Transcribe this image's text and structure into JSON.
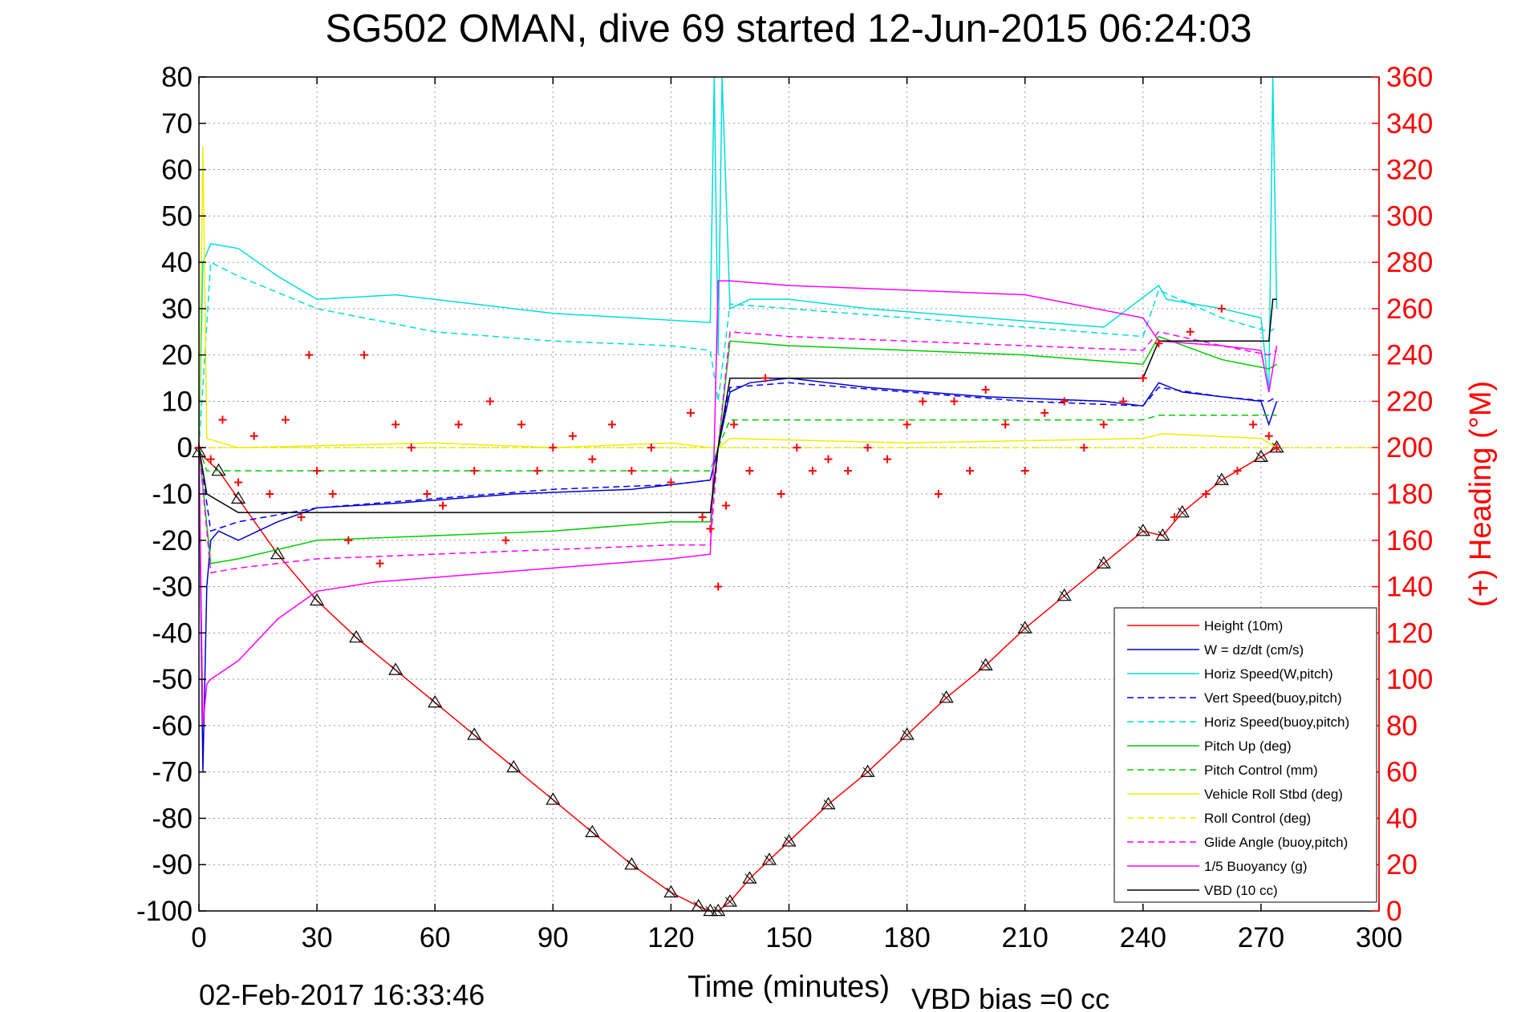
{
  "chart_data": {
    "type": "line",
    "title": "SG502 OMAN, dive 69 started 12-Jun-2015 06:24:03",
    "xlabel": "Time (minutes)",
    "ylabel_right": "(+) Heading (°M)",
    "footer_left": "02-Feb-2017 16:33:46",
    "footer_right": "VBD bias =0 cc",
    "xlim": [
      0,
      300
    ],
    "ylim": [
      -100,
      80
    ],
    "ylim_right": [
      0,
      360
    ],
    "x_ticks": [
      0,
      30,
      60,
      90,
      120,
      150,
      180,
      210,
      240,
      270,
      300
    ],
    "y_ticks": [
      80,
      70,
      60,
      50,
      40,
      30,
      20,
      10,
      0,
      -10,
      -20,
      -30,
      -40,
      -50,
      -60,
      -70,
      -80,
      -90,
      -100
    ],
    "y_right_ticks": [
      360,
      340,
      320,
      300,
      280,
      260,
      240,
      220,
      200,
      180,
      160,
      140,
      120,
      100,
      80,
      60,
      40,
      20,
      0
    ],
    "grid": true,
    "legend_position": "lower-right",
    "colors": {
      "right_axis": "#ff0000",
      "axes": "#000000"
    },
    "series": [
      {
        "name": "Height (10m)",
        "color": "#ff0000",
        "style": "solid",
        "marker": "triangle",
        "x": [
          0,
          5,
          10,
          20,
          30,
          40,
          50,
          60,
          70,
          80,
          90,
          100,
          110,
          120,
          127,
          130,
          132,
          135,
          140,
          145,
          150,
          160,
          170,
          180,
          190,
          200,
          210,
          220,
          230,
          240,
          245,
          250,
          260,
          270,
          274
        ],
        "values": [
          -1,
          -5,
          -11,
          -23,
          -33,
          -41,
          -48,
          -55,
          -62,
          -69,
          -76,
          -83,
          -90,
          -96,
          -99,
          -100,
          -100,
          -98,
          -93,
          -89,
          -85,
          -77,
          -70,
          -62,
          -54,
          -47,
          -39,
          -32,
          -25,
          -18,
          -19,
          -14,
          -7,
          -2,
          0
        ]
      },
      {
        "name": "W = dz/dt (cm/s)",
        "color": "#0000cc",
        "style": "solid",
        "x": [
          0,
          1,
          2,
          3,
          5,
          10,
          20,
          30,
          50,
          80,
          110,
          130,
          132,
          135,
          140,
          150,
          170,
          200,
          230,
          240,
          244,
          250,
          260,
          270,
          272,
          274
        ],
        "values": [
          0,
          -70,
          -30,
          -20,
          -18,
          -20,
          -16,
          -13,
          -12,
          -10,
          -9,
          -7,
          0,
          12,
          14,
          15,
          13,
          11,
          10,
          9,
          14,
          12,
          11,
          10,
          5,
          10
        ]
      },
      {
        "name": "Horiz Speed(W,pitch)",
        "color": "#00dddd",
        "style": "solid",
        "x": [
          0,
          1,
          3,
          10,
          20,
          30,
          50,
          70,
          90,
          110,
          130,
          131,
          132,
          133,
          135,
          140,
          150,
          170,
          200,
          230,
          244,
          246,
          260,
          270,
          272,
          273,
          274
        ],
        "values": [
          0,
          40,
          44,
          43,
          37,
          32,
          33,
          31,
          29,
          28,
          27,
          80,
          20,
          80,
          30,
          32,
          32,
          30,
          28,
          26,
          35,
          32,
          30,
          28,
          12,
          80,
          30
        ]
      },
      {
        "name": "Vert Speed(buoy,pitch)",
        "color": "#0000ff",
        "style": "dashed",
        "x": [
          0,
          3,
          10,
          30,
          60,
          90,
          120,
          130,
          132,
          135,
          150,
          180,
          210,
          240,
          244,
          260,
          272,
          274
        ],
        "values": [
          0,
          -18,
          -16,
          -13,
          -11,
          -9,
          -8,
          -7,
          0,
          13,
          14,
          12,
          10,
          9,
          13,
          11,
          10,
          11
        ]
      },
      {
        "name": "Horiz Speed(buoy,pitch)",
        "color": "#00dddd",
        "style": "dashed",
        "x": [
          0,
          3,
          10,
          30,
          60,
          90,
          120,
          130,
          132,
          135,
          150,
          180,
          210,
          240,
          244,
          260,
          272,
          274
        ],
        "values": [
          0,
          40,
          37,
          30,
          25,
          23,
          22,
          21,
          10,
          31,
          30,
          28,
          26,
          24,
          34,
          28,
          25,
          26
        ]
      },
      {
        "name": "Pitch Up (deg)",
        "color": "#00cc00",
        "style": "solid",
        "x": [
          0,
          3,
          10,
          20,
          30,
          60,
          90,
          120,
          130,
          132,
          135,
          150,
          180,
          210,
          240,
          244,
          260,
          272,
          274
        ],
        "values": [
          0,
          -25,
          -24,
          -22,
          -20,
          -19,
          -18,
          -16,
          -16,
          0,
          23,
          22,
          21,
          20,
          18,
          24,
          19,
          17,
          18
        ]
      },
      {
        "name": "Pitch Control (mm)",
        "color": "#00cc00",
        "style": "dashed",
        "x": [
          0,
          2,
          60,
          130,
          132,
          135,
          240,
          244,
          274
        ],
        "values": [
          0,
          -5,
          -5,
          -5,
          0,
          6,
          6,
          7,
          7
        ]
      },
      {
        "name": "Vehicle Roll Stbd (deg)",
        "color": "#eeee00",
        "style": "solid",
        "x": [
          0,
          1,
          2,
          10,
          60,
          90,
          120,
          130,
          132,
          135,
          180,
          240,
          245,
          270,
          274
        ],
        "values": [
          0,
          65,
          2,
          0,
          1,
          0,
          1,
          0,
          0,
          2,
          1,
          2,
          3,
          2,
          0
        ]
      },
      {
        "name": "Roll Control (deg)",
        "color": "#eeee00",
        "style": "dashed",
        "x": [
          0,
          300
        ],
        "values": [
          0,
          0
        ]
      },
      {
        "name": "Glide Angle (buoy,pitch)",
        "color": "#ff00ff",
        "style": "dashed",
        "x": [
          0,
          3,
          10,
          30,
          60,
          90,
          120,
          130,
          132,
          135,
          150,
          180,
          210,
          240,
          244,
          260,
          272,
          274
        ],
        "values": [
          0,
          -27,
          -26,
          -24,
          -23,
          -22,
          -21,
          -21,
          0,
          25,
          24,
          23,
          22,
          21,
          25,
          22,
          20,
          21
        ]
      },
      {
        "name": "1/5 Buoyancy (g)",
        "color": "#ff00ff",
        "style": "solid",
        "x": [
          0,
          1,
          2,
          3,
          10,
          20,
          30,
          45,
          60,
          90,
          120,
          130,
          131,
          132,
          135,
          150,
          180,
          210,
          240,
          244,
          260,
          270,
          272,
          274
        ],
        "values": [
          0,
          -60,
          -51,
          -50,
          -46,
          -37,
          -31,
          -29,
          -28,
          -26,
          -24,
          -23,
          0,
          36,
          36,
          35,
          34,
          33,
          28,
          23,
          22,
          21,
          12,
          22
        ]
      },
      {
        "name": "VBD (10 cc)",
        "color": "#000000",
        "style": "solid",
        "x": [
          0,
          2,
          10,
          130,
          132,
          135,
          240,
          244,
          272,
          273,
          274
        ],
        "values": [
          0,
          -10,
          -14,
          -14,
          0,
          15,
          15,
          23,
          23,
          32,
          32
        ]
      }
    ],
    "heading_series": {
      "name": "(+) Heading",
      "color": "#ff0000",
      "marker": "plus",
      "axis": "right",
      "x": [
        0,
        3,
        6,
        10,
        14,
        18,
        22,
        26,
        28,
        30,
        34,
        38,
        42,
        46,
        50,
        54,
        58,
        62,
        66,
        70,
        74,
        78,
        82,
        86,
        90,
        95,
        100,
        105,
        110,
        115,
        120,
        125,
        128,
        130,
        132,
        134,
        136,
        140,
        144,
        148,
        152,
        156,
        160,
        165,
        170,
        175,
        180,
        184,
        188,
        192,
        196,
        200,
        205,
        210,
        215,
        220,
        225,
        230,
        235,
        240,
        244,
        248,
        252,
        256,
        260,
        264,
        268,
        272,
        274
      ],
      "values": [
        200,
        195,
        212,
        185,
        205,
        180,
        212,
        170,
        240,
        190,
        180,
        160,
        240,
        150,
        210,
        200,
        180,
        175,
        210,
        190,
        220,
        160,
        210,
        190,
        200,
        205,
        195,
        210,
        190,
        200,
        185,
        215,
        170,
        165,
        140,
        175,
        210,
        190,
        230,
        180,
        200,
        190,
        195,
        190,
        200,
        195,
        210,
        220,
        180,
        220,
        190,
        225,
        210,
        190,
        215,
        220,
        200,
        210,
        220,
        230,
        245,
        170,
        250,
        180,
        260,
        190,
        210,
        205,
        200
      ]
    }
  }
}
